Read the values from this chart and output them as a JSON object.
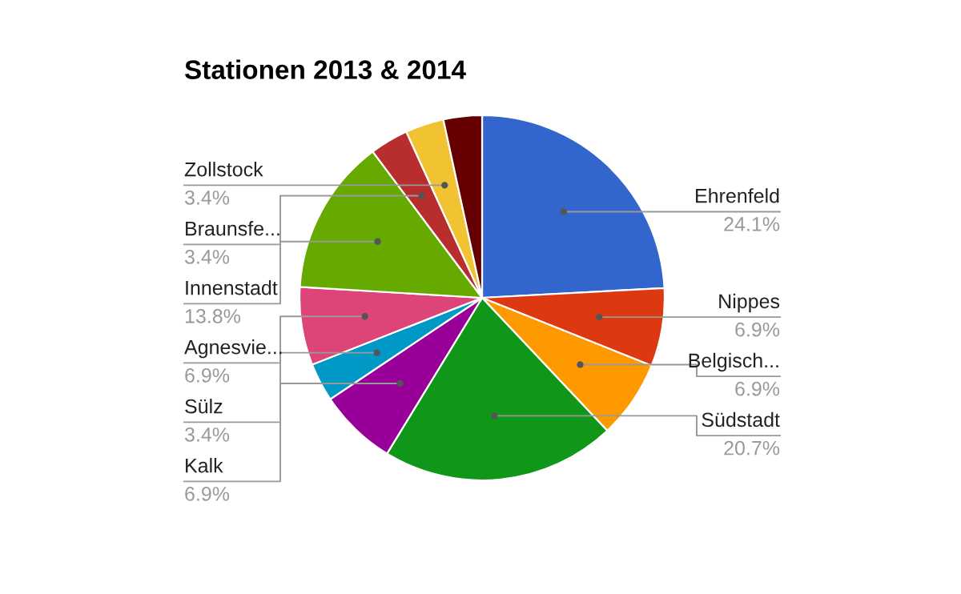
{
  "chart_data": {
    "type": "pie",
    "title": "Stationen 2013 & 2014",
    "categories": [
      "Ehrenfeld",
      "Nippes",
      "Belgisch...",
      "Südstadt",
      "Kalk",
      "Sülz",
      "Agnesvie...",
      "Innenstadt",
      "Braunsfe...",
      "Zollstock",
      null
    ],
    "values": [
      24.1,
      6.9,
      6.9,
      20.7,
      6.9,
      3.4,
      6.9,
      13.8,
      3.4,
      3.4,
      3.4
    ],
    "value_labels": [
      "24.1%",
      "6.9%",
      "6.9%",
      "20.7%",
      "6.9%",
      "3.4%",
      "6.9%",
      "13.8%",
      "3.4%",
      "3.4%",
      null
    ],
    "colors": [
      "#3366cc",
      "#dc3912",
      "#ff9900",
      "#109618",
      "#990099",
      "#0099c6",
      "#dd4477",
      "#66aa00",
      "#b82e2e",
      "#f1c232",
      "#660000"
    ]
  }
}
